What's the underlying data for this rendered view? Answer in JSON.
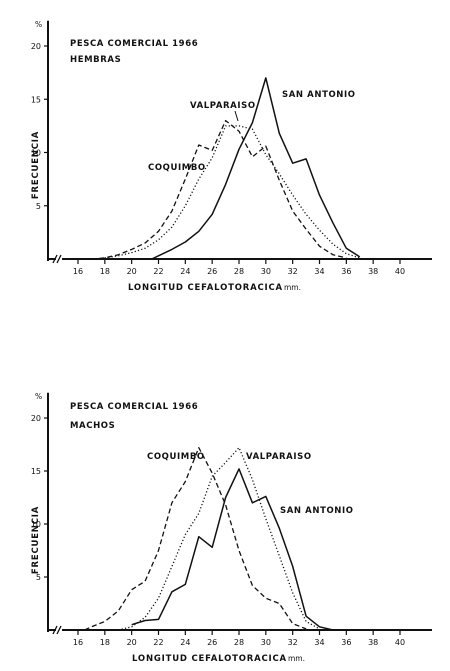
{
  "chart_data": [
    {
      "type": "line",
      "title": "PESCA COMERCIAL 1966",
      "subtitle": "HEMBRAS",
      "xlabel": "LONGITUD CEFALOTORACICA",
      "xunit": "mm.",
      "ylabel": "FRECUENCIA",
      "yunit": "%",
      "xlim": [
        15,
        42
      ],
      "ylim": [
        0,
        22
      ],
      "xticks": [
        16,
        18,
        20,
        22,
        24,
        26,
        28,
        30,
        32,
        34,
        36,
        38,
        40
      ],
      "yticks": [
        5,
        10,
        15,
        20
      ],
      "series": [
        {
          "name": "SAN ANTONIO",
          "style": "solid",
          "x": [
            21.5,
            22,
            23,
            24,
            25,
            26,
            27,
            28,
            29,
            30,
            31,
            32,
            33,
            34,
            35,
            36,
            37
          ],
          "y": [
            0,
            0.3,
            0.9,
            1.6,
            2.6,
            4.2,
            7.0,
            10.3,
            12.8,
            17.0,
            11.8,
            9.0,
            9.4,
            6.0,
            3.4,
            1.0,
            0.2
          ]
        },
        {
          "name": "VALPARAISO",
          "style": "dotted",
          "x": [
            18,
            19,
            20,
            21,
            22,
            23,
            24,
            25,
            26,
            27,
            28,
            29,
            30,
            31,
            32,
            33,
            34,
            35,
            36,
            37
          ],
          "y": [
            0.1,
            0.3,
            0.6,
            1.0,
            1.8,
            3.0,
            5.0,
            7.5,
            9.5,
            12.5,
            12.5,
            12.2,
            9.8,
            8.0,
            6.0,
            4.2,
            2.7,
            1.4,
            0.5,
            0.1
          ]
        },
        {
          "name": "COQUIMBO",
          "style": "dashed",
          "x": [
            17,
            18,
            19,
            20,
            21,
            22,
            23,
            24,
            25,
            26,
            27,
            28,
            29,
            30,
            31,
            32,
            33,
            34,
            35,
            36
          ],
          "y": [
            0,
            0.1,
            0.4,
            0.9,
            1.5,
            2.6,
            4.5,
            7.5,
            10.7,
            10.2,
            13.0,
            12.0,
            9.6,
            10.6,
            7.4,
            4.5,
            2.8,
            1.2,
            0.4,
            0.1
          ]
        }
      ],
      "annotations": [
        "SAN ANTONIO",
        "VALPARAISO",
        "COQUIMBO"
      ]
    },
    {
      "type": "line",
      "title": "PESCA COMERCIAL 1966",
      "subtitle": "MACHOS",
      "xlabel": "LONGITUD CEFALOTORACICA",
      "xunit": "mm.",
      "ylabel": "FRECUENCIA",
      "yunit": "%",
      "xlim": [
        15,
        42
      ],
      "ylim": [
        0,
        22
      ],
      "xticks": [
        16,
        18,
        20,
        22,
        24,
        26,
        28,
        30,
        32,
        34,
        36,
        38,
        40
      ],
      "yticks": [
        5,
        10,
        15,
        20
      ],
      "series": [
        {
          "name": "COQUIMBO",
          "style": "dashed",
          "x": [
            16.5,
            17,
            18,
            19,
            20,
            21,
            22,
            23,
            24,
            25,
            26,
            27,
            28,
            29,
            30,
            31,
            32,
            33
          ],
          "y": [
            0,
            0.3,
            0.8,
            1.8,
            3.8,
            4.6,
            7.5,
            12.0,
            14.0,
            17.2,
            14.8,
            11.8,
            7.5,
            4.2,
            3.0,
            2.5,
            0.6,
            0.1
          ]
        },
        {
          "name": "VALPARAISO",
          "style": "dotted",
          "x": [
            19,
            20,
            21,
            22,
            23,
            24,
            25,
            26,
            27,
            28,
            29,
            30,
            31,
            32,
            33,
            34
          ],
          "y": [
            0,
            0.3,
            1.2,
            3.0,
            6.0,
            9.0,
            11.0,
            14.5,
            15.8,
            17.2,
            14.2,
            10.5,
            7.0,
            3.5,
            0.8,
            0.1
          ]
        },
        {
          "name": "SAN ANTONIO",
          "style": "solid",
          "x": [
            20,
            21,
            22,
            23,
            24,
            25,
            26,
            27,
            28,
            29,
            30,
            31,
            32,
            33,
            34,
            35
          ],
          "y": [
            0.5,
            0.9,
            1.0,
            3.6,
            4.3,
            8.8,
            7.8,
            12.5,
            15.2,
            12.0,
            12.6,
            9.6,
            6.0,
            1.3,
            0.3,
            0
          ]
        }
      ],
      "annotations": [
        "COQUIMBO",
        "VALPARAISO",
        "SAN ANTONIO"
      ]
    }
  ]
}
